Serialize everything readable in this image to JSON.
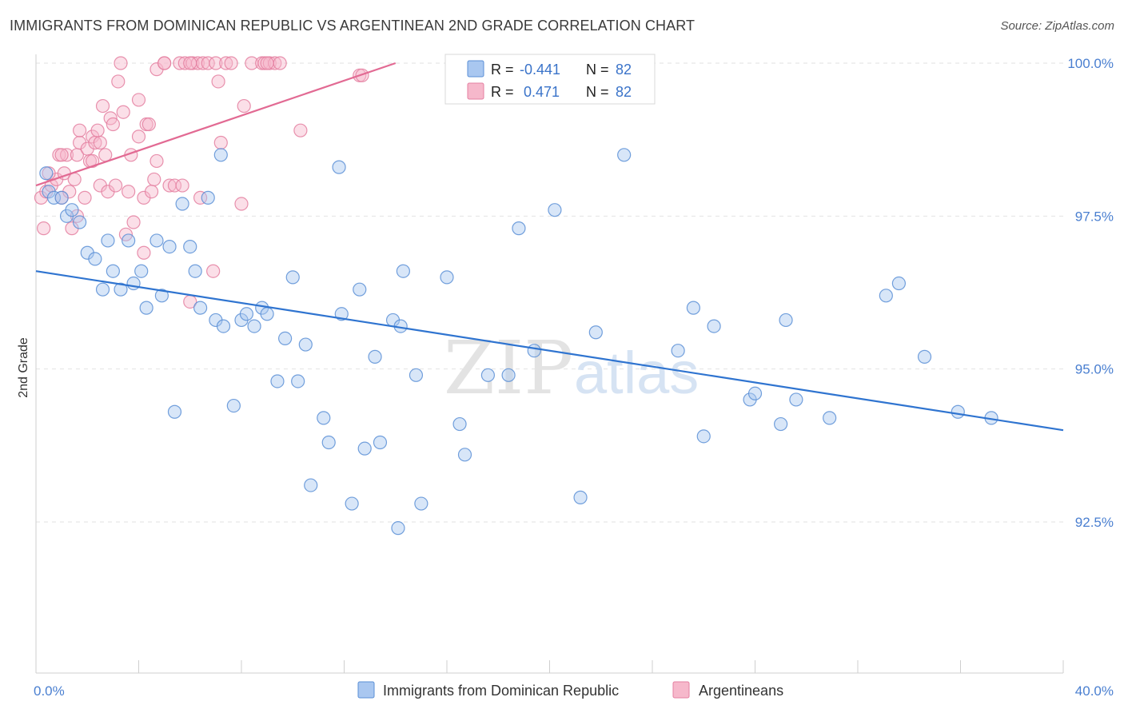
{
  "header": {
    "title": "IMMIGRANTS FROM DOMINICAN REPUBLIC VS ARGENTINEAN 2ND GRADE CORRELATION CHART",
    "source": "Source: ZipAtlas.com"
  },
  "watermark": {
    "zip": "ZIP",
    "atlas": "atlas"
  },
  "colors": {
    "blue_fill": "#a9c7f0",
    "blue_stroke": "#5a8fd6",
    "blue_line": "#2f74d0",
    "pink_fill": "#f6b8cb",
    "pink_stroke": "#e47fa0",
    "pink_line": "#e26a93",
    "tick_label": "#4a7fd0",
    "grid": "#e2e2e2"
  },
  "stats": [
    {
      "r_label": "R =",
      "r_value": "-0.441",
      "n_label": "N =",
      "n_value": "82"
    },
    {
      "r_label": "R =",
      "r_value": " 0.471",
      "n_label": "N =",
      "n_value": "82"
    }
  ],
  "chart_data": {
    "type": "scatter",
    "title": "IMMIGRANTS FROM DOMINICAN REPUBLIC VS ARGENTINEAN 2ND GRADE CORRELATION CHART",
    "xlabel": "",
    "ylabel": "2nd Grade",
    "xlim": [
      0,
      40
    ],
    "ylim": [
      90.0,
      100.3
    ],
    "x_tick_labels": [
      "0.0%",
      "40.0%"
    ],
    "y_ticks": [
      92.5,
      95.0,
      97.5,
      100.0
    ],
    "y_tick_labels": [
      "92.5%",
      "95.0%",
      "97.5%",
      "100.0%"
    ],
    "grid": "horizontal dashed",
    "legend_position": "bottom",
    "series": [
      {
        "name": "Immigrants from Dominican Republic",
        "color": "blue",
        "trend": {
          "x": [
            0.0,
            40.0
          ],
          "y": [
            96.6,
            94.0
          ]
        },
        "points": [
          {
            "x": 0.4,
            "y": 98.2
          },
          {
            "x": 0.5,
            "y": 97.9
          },
          {
            "x": 0.7,
            "y": 97.8
          },
          {
            "x": 1.0,
            "y": 97.8
          },
          {
            "x": 1.2,
            "y": 97.5
          },
          {
            "x": 1.4,
            "y": 97.6
          },
          {
            "x": 1.7,
            "y": 97.4
          },
          {
            "x": 2.0,
            "y": 96.9
          },
          {
            "x": 2.3,
            "y": 96.8
          },
          {
            "x": 2.6,
            "y": 96.3
          },
          {
            "x": 2.8,
            "y": 97.1
          },
          {
            "x": 3.0,
            "y": 96.6
          },
          {
            "x": 3.3,
            "y": 96.3
          },
          {
            "x": 3.6,
            "y": 97.1
          },
          {
            "x": 3.8,
            "y": 96.4
          },
          {
            "x": 4.1,
            "y": 96.6
          },
          {
            "x": 4.3,
            "y": 96.0
          },
          {
            "x": 4.7,
            "y": 97.1
          },
          {
            "x": 4.9,
            "y": 96.2
          },
          {
            "x": 5.2,
            "y": 97.0
          },
          {
            "x": 5.4,
            "y": 94.3
          },
          {
            "x": 5.7,
            "y": 97.7
          },
          {
            "x": 6.0,
            "y": 97.0
          },
          {
            "x": 6.2,
            "y": 96.6
          },
          {
            "x": 6.4,
            "y": 96.0
          },
          {
            "x": 6.7,
            "y": 97.8
          },
          {
            "x": 7.0,
            "y": 95.8
          },
          {
            "x": 7.2,
            "y": 98.5
          },
          {
            "x": 7.3,
            "y": 95.7
          },
          {
            "x": 7.7,
            "y": 94.4
          },
          {
            "x": 8.0,
            "y": 95.8
          },
          {
            "x": 8.2,
            "y": 95.9
          },
          {
            "x": 8.5,
            "y": 95.7
          },
          {
            "x": 8.8,
            "y": 96.0
          },
          {
            "x": 9.0,
            "y": 95.9
          },
          {
            "x": 9.4,
            "y": 94.8
          },
          {
            "x": 9.7,
            "y": 95.5
          },
          {
            "x": 10.0,
            "y": 96.5
          },
          {
            "x": 10.2,
            "y": 94.8
          },
          {
            "x": 10.5,
            "y": 95.4
          },
          {
            "x": 10.7,
            "y": 93.1
          },
          {
            "x": 11.2,
            "y": 94.2
          },
          {
            "x": 11.4,
            "y": 93.8
          },
          {
            "x": 11.9,
            "y": 95.9
          },
          {
            "x": 11.8,
            "y": 98.3
          },
          {
            "x": 12.3,
            "y": 92.8
          },
          {
            "x": 12.6,
            "y": 96.3
          },
          {
            "x": 12.8,
            "y": 93.7
          },
          {
            "x": 13.2,
            "y": 95.2
          },
          {
            "x": 13.4,
            "y": 93.8
          },
          {
            "x": 13.9,
            "y": 95.8
          },
          {
            "x": 14.1,
            "y": 92.4
          },
          {
            "x": 14.2,
            "y": 95.7
          },
          {
            "x": 14.3,
            "y": 96.6
          },
          {
            "x": 14.8,
            "y": 94.9
          },
          {
            "x": 15.0,
            "y": 92.8
          },
          {
            "x": 16.0,
            "y": 96.5
          },
          {
            "x": 16.5,
            "y": 94.1
          },
          {
            "x": 16.7,
            "y": 93.6
          },
          {
            "x": 17.6,
            "y": 94.9
          },
          {
            "x": 18.4,
            "y": 94.9
          },
          {
            "x": 18.8,
            "y": 97.3
          },
          {
            "x": 19.4,
            "y": 95.3
          },
          {
            "x": 20.2,
            "y": 97.6
          },
          {
            "x": 21.2,
            "y": 92.9
          },
          {
            "x": 21.8,
            "y": 95.6
          },
          {
            "x": 22.9,
            "y": 98.5
          },
          {
            "x": 25.0,
            "y": 95.3
          },
          {
            "x": 25.6,
            "y": 96.0
          },
          {
            "x": 26.0,
            "y": 93.9
          },
          {
            "x": 26.4,
            "y": 95.7
          },
          {
            "x": 27.8,
            "y": 94.5
          },
          {
            "x": 28.0,
            "y": 94.6
          },
          {
            "x": 29.0,
            "y": 94.1
          },
          {
            "x": 29.2,
            "y": 95.8
          },
          {
            "x": 29.6,
            "y": 94.5
          },
          {
            "x": 30.9,
            "y": 94.2
          },
          {
            "x": 33.1,
            "y": 96.2
          },
          {
            "x": 33.6,
            "y": 96.4
          },
          {
            "x": 34.6,
            "y": 95.2
          },
          {
            "x": 35.9,
            "y": 94.3
          },
          {
            "x": 37.2,
            "y": 94.2
          }
        ]
      },
      {
        "name": "Argentineans",
        "color": "pink",
        "trend": {
          "x": [
            0.0,
            14.0
          ],
          "y": [
            98.0,
            100.0
          ]
        },
        "points": [
          {
            "x": 0.2,
            "y": 97.8
          },
          {
            "x": 0.3,
            "y": 97.3
          },
          {
            "x": 0.4,
            "y": 97.9
          },
          {
            "x": 0.6,
            "y": 98.0
          },
          {
            "x": 0.8,
            "y": 98.1
          },
          {
            "x": 0.9,
            "y": 98.5
          },
          {
            "x": 1.0,
            "y": 97.8
          },
          {
            "x": 1.1,
            "y": 98.2
          },
          {
            "x": 1.2,
            "y": 98.5
          },
          {
            "x": 1.3,
            "y": 97.9
          },
          {
            "x": 1.4,
            "y": 97.3
          },
          {
            "x": 1.6,
            "y": 97.5
          },
          {
            "x": 1.6,
            "y": 98.5
          },
          {
            "x": 1.7,
            "y": 98.7
          },
          {
            "x": 1.7,
            "y": 98.9
          },
          {
            "x": 1.9,
            "y": 97.8
          },
          {
            "x": 2.0,
            "y": 98.6
          },
          {
            "x": 2.1,
            "y": 98.4
          },
          {
            "x": 2.2,
            "y": 98.8
          },
          {
            "x": 2.3,
            "y": 98.7
          },
          {
            "x": 2.4,
            "y": 98.9
          },
          {
            "x": 2.5,
            "y": 98.7
          },
          {
            "x": 2.5,
            "y": 98.0
          },
          {
            "x": 2.6,
            "y": 99.3
          },
          {
            "x": 2.7,
            "y": 98.5
          },
          {
            "x": 2.8,
            "y": 97.9
          },
          {
            "x": 2.9,
            "y": 99.1
          },
          {
            "x": 3.0,
            "y": 99.0
          },
          {
            "x": 3.1,
            "y": 98.0
          },
          {
            "x": 3.2,
            "y": 99.7
          },
          {
            "x": 3.3,
            "y": 100.0
          },
          {
            "x": 3.4,
            "y": 99.2
          },
          {
            "x": 3.5,
            "y": 97.2
          },
          {
            "x": 3.7,
            "y": 98.5
          },
          {
            "x": 3.8,
            "y": 97.4
          },
          {
            "x": 4.0,
            "y": 99.4
          },
          {
            "x": 4.0,
            "y": 98.8
          },
          {
            "x": 4.2,
            "y": 97.8
          },
          {
            "x": 4.2,
            "y": 96.9
          },
          {
            "x": 4.3,
            "y": 99.0
          },
          {
            "x": 4.5,
            "y": 97.9
          },
          {
            "x": 4.6,
            "y": 98.1
          },
          {
            "x": 4.7,
            "y": 98.4
          },
          {
            "x": 4.7,
            "y": 99.9
          },
          {
            "x": 5.0,
            "y": 100.0
          },
          {
            "x": 5.2,
            "y": 98.0
          },
          {
            "x": 5.4,
            "y": 98.0
          },
          {
            "x": 5.6,
            "y": 100.0
          },
          {
            "x": 5.7,
            "y": 98.0
          },
          {
            "x": 5.8,
            "y": 100.0
          },
          {
            "x": 6.0,
            "y": 96.1
          },
          {
            "x": 6.1,
            "y": 100.0
          },
          {
            "x": 6.3,
            "y": 100.0
          },
          {
            "x": 6.4,
            "y": 97.8
          },
          {
            "x": 6.5,
            "y": 100.0
          },
          {
            "x": 6.7,
            "y": 100.0
          },
          {
            "x": 6.9,
            "y": 96.6
          },
          {
            "x": 7.0,
            "y": 100.0
          },
          {
            "x": 7.1,
            "y": 99.7
          },
          {
            "x": 7.2,
            "y": 98.7
          },
          {
            "x": 7.4,
            "y": 100.0
          },
          {
            "x": 7.6,
            "y": 100.0
          },
          {
            "x": 8.0,
            "y": 97.7
          },
          {
            "x": 8.1,
            "y": 99.3
          },
          {
            "x": 8.4,
            "y": 100.0
          },
          {
            "x": 8.8,
            "y": 100.0
          },
          {
            "x": 8.9,
            "y": 100.0
          },
          {
            "x": 9.1,
            "y": 100.0
          },
          {
            "x": 9.3,
            "y": 100.0
          },
          {
            "x": 9.5,
            "y": 100.0
          },
          {
            "x": 10.3,
            "y": 98.9
          },
          {
            "x": 12.6,
            "y": 99.8
          },
          {
            "x": 12.7,
            "y": 99.8
          },
          {
            "x": 5.0,
            "y": 100.0
          },
          {
            "x": 6.0,
            "y": 100.0
          },
          {
            "x": 9.0,
            "y": 100.0
          },
          {
            "x": 2.2,
            "y": 98.4
          },
          {
            "x": 1.5,
            "y": 98.1
          },
          {
            "x": 3.6,
            "y": 97.9
          },
          {
            "x": 4.4,
            "y": 99.0
          },
          {
            "x": 0.5,
            "y": 98.2
          },
          {
            "x": 1.0,
            "y": 98.5
          }
        ]
      }
    ]
  },
  "legend": {
    "items": [
      {
        "label": "Immigrants from Dominican Republic",
        "color": "blue"
      },
      {
        "label": "Argentineans",
        "color": "pink"
      }
    ]
  }
}
